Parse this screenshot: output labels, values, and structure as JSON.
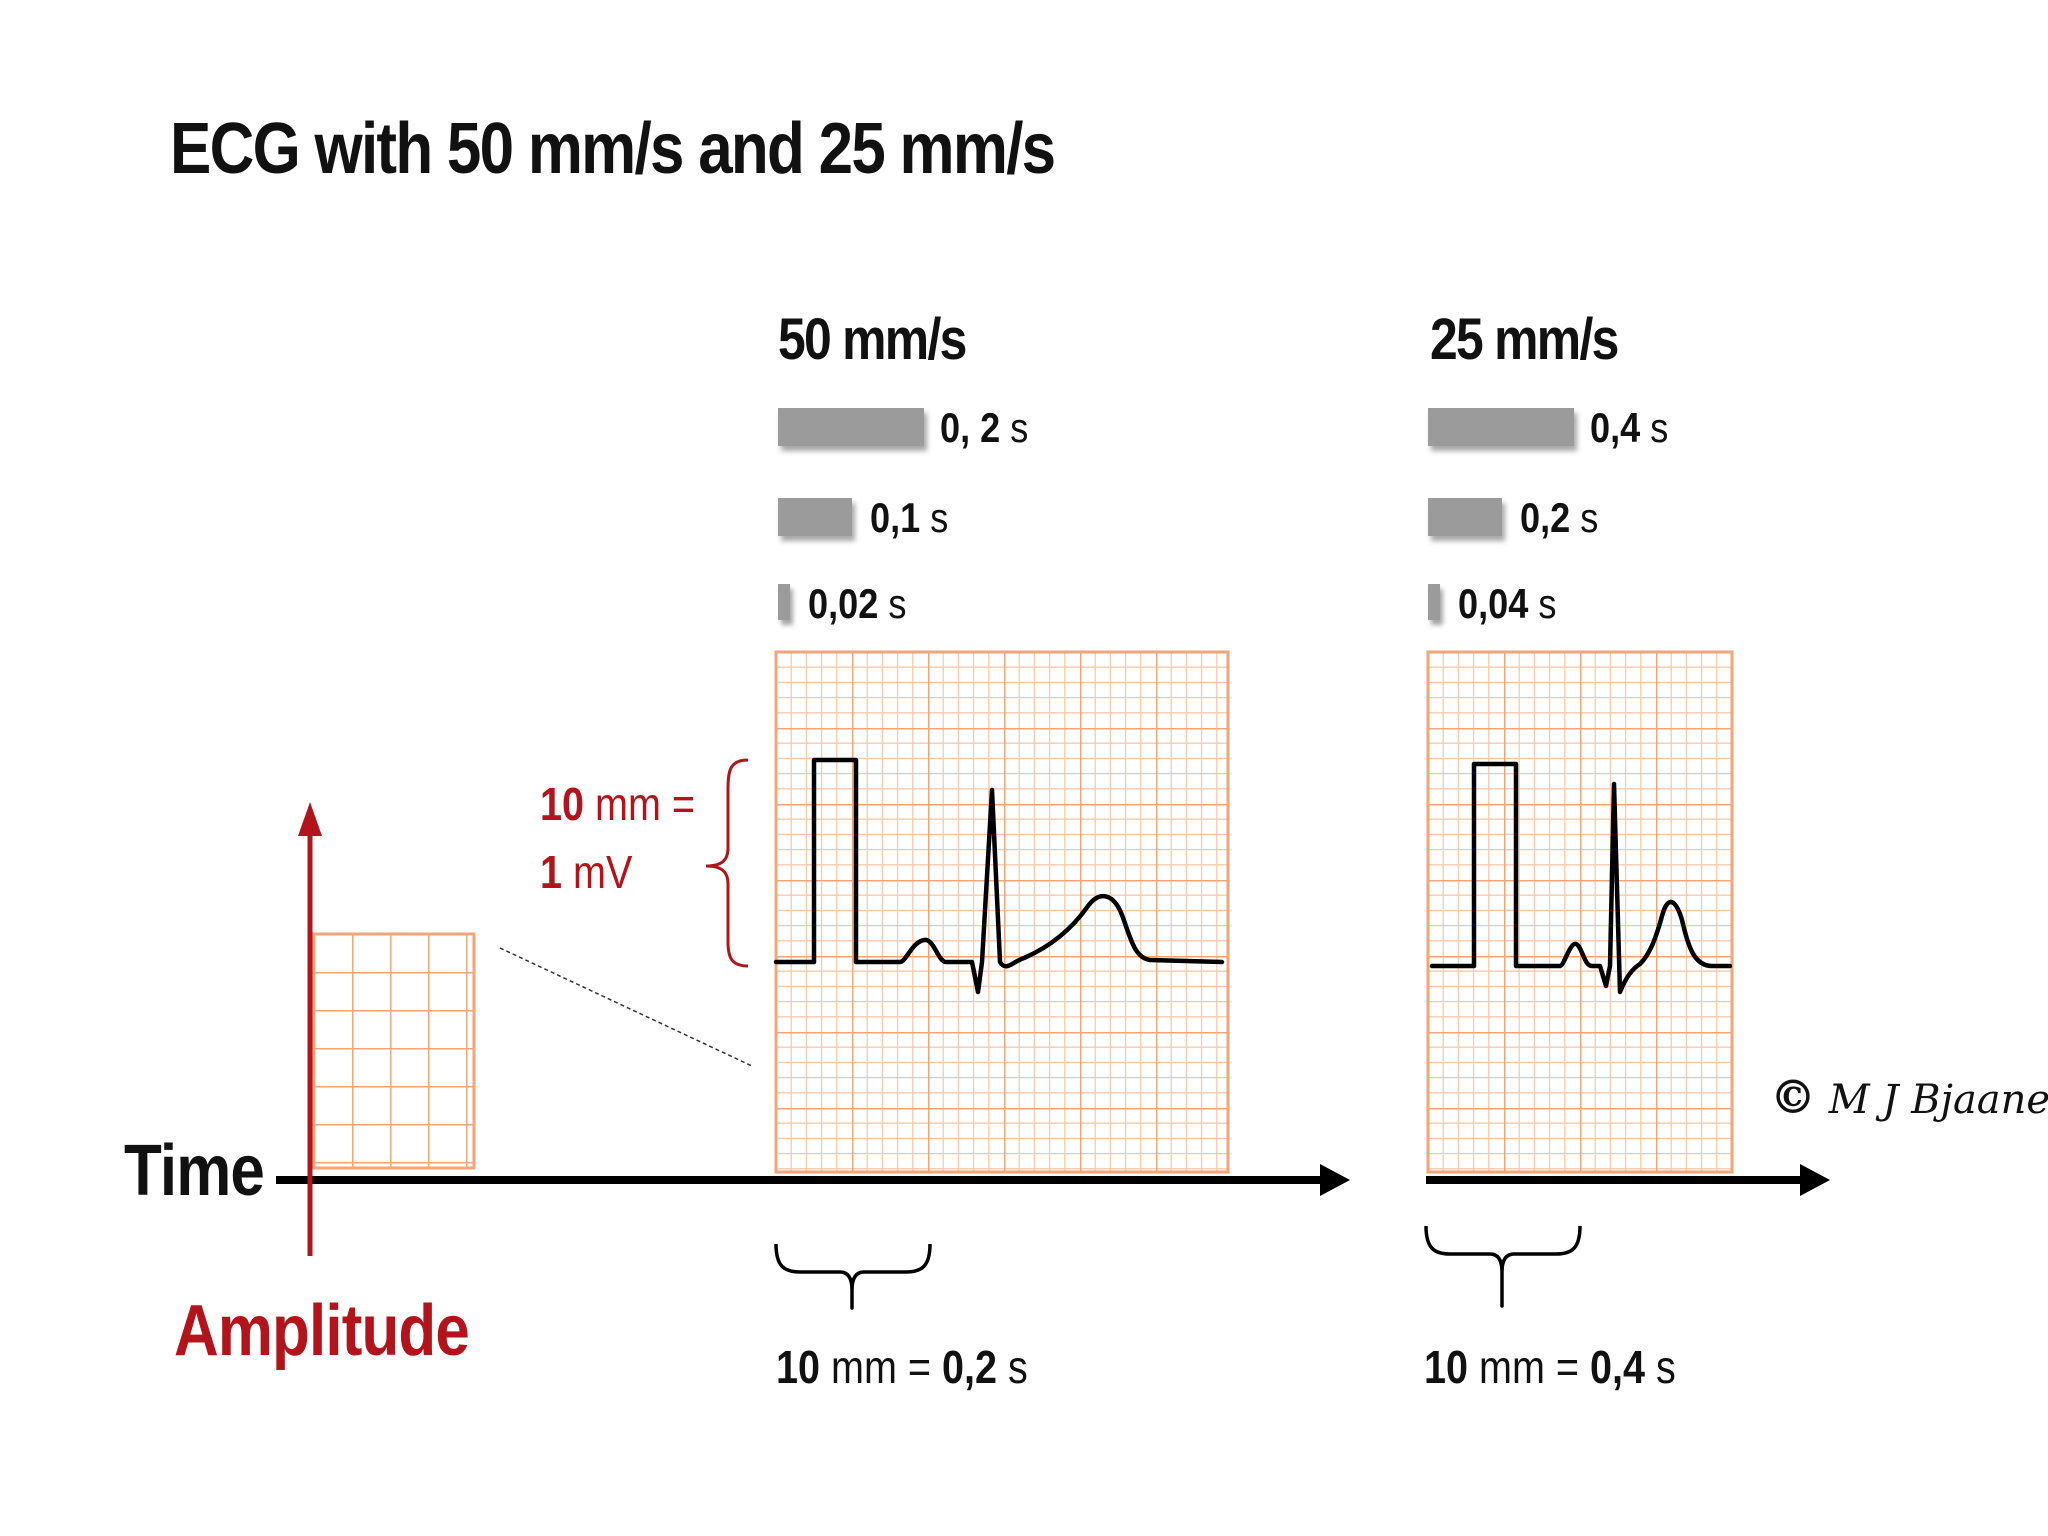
{
  "title": "ECG with 50 mm/s and 25 mm/s",
  "panels": [
    {
      "speed": "50 mm/s",
      "durations": [
        {
          "value": "0, 2",
          "unit": "s"
        },
        {
          "value": "0,1",
          "unit": "s"
        },
        {
          "value": "0,02",
          "unit": "s"
        }
      ],
      "caption": {
        "prefix": "10",
        "mid": "mm =",
        "value": "0,2",
        "unit": "s"
      }
    },
    {
      "speed": "25 mm/s",
      "durations": [
        {
          "value": "0,4",
          "unit": "s"
        },
        {
          "value": "0,2",
          "unit": "s"
        },
        {
          "value": "0,04",
          "unit": "s"
        }
      ],
      "caption": {
        "prefix": "10",
        "mid": "mm =",
        "value": "0,4",
        "unit": "s"
      }
    }
  ],
  "calibration": {
    "line1_value": "10",
    "line1_unit": "mm =",
    "line2_value": "1",
    "line2_unit": "mV"
  },
  "axes": {
    "time": "Time",
    "amplitude": "Amplitude"
  },
  "copyright": {
    "symbol": "©",
    "signature": "M J Bjaanes"
  },
  "colors": {
    "grid": "#f3a57a",
    "grid_fine": "#f8c9ad",
    "amplitude": "#b3141b",
    "bar": "#9b9b9b"
  }
}
